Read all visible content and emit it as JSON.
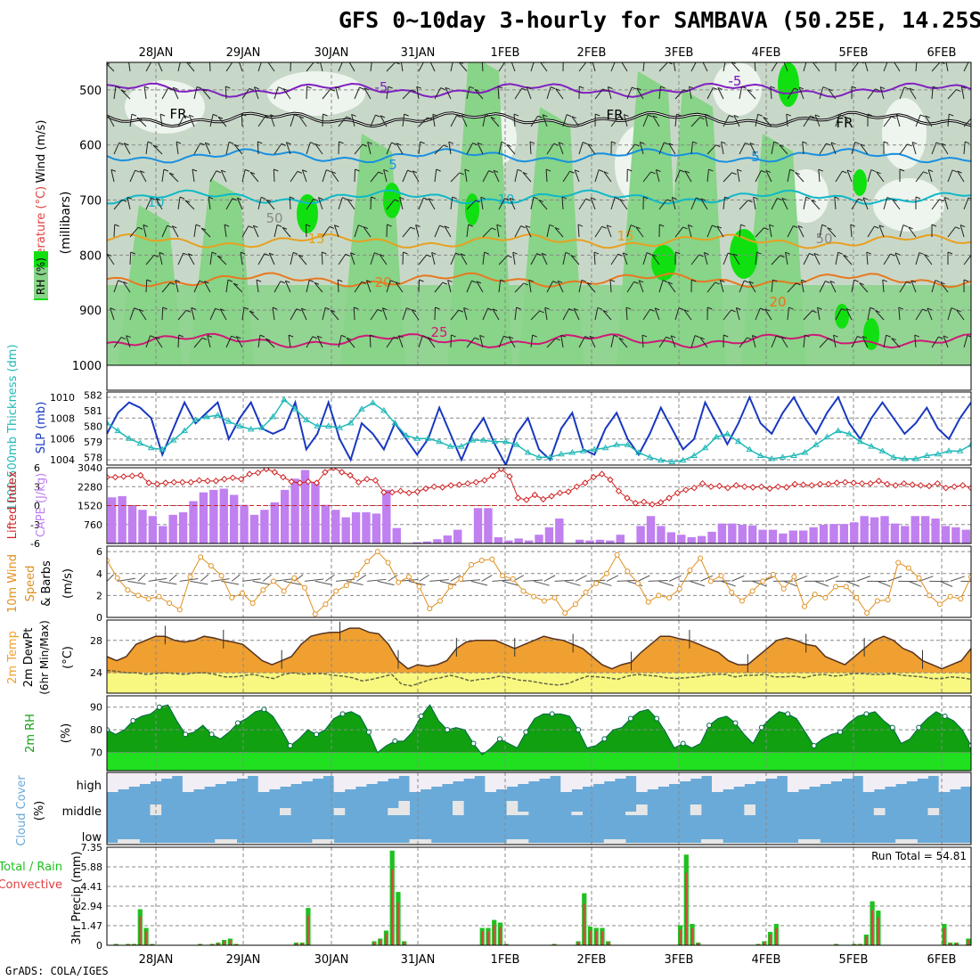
{
  "title": "GFS 0~10day 3-hourly for SAMBAVA (50.25E, 14.25S)",
  "credit": "GrADS: COLA/IGES",
  "date_labels": [
    "28JAN",
    "29JAN",
    "30JAN",
    "31JAN",
    "1FEB",
    "2FEB",
    "3FEB",
    "4FEB",
    "5FEB",
    "6FEB"
  ],
  "colors": {
    "rh_light": "#c8d8c8",
    "rh_mid": "#88d488",
    "rh_bright": "#10e010",
    "temp_fr": "#000000",
    "temp_m5": "#8020c0",
    "temp_5": "#1890e0",
    "temp_10": "#10b8c8",
    "temp_15": "#e8a020",
    "temp_20": "#e87820",
    "temp_25": "#d01878",
    "slp": "#1838c0",
    "thick": "#20b8b8",
    "lifted": "#d02020",
    "cape": "#c080f0",
    "wind10": "#e09020",
    "temp2m": "#f0a030",
    "dew2m": "#f8f880",
    "rh2m_dark": "#10a010",
    "rh2m_light": "#20e020",
    "cloud": "#6aaad8",
    "precip_total": "#20c020",
    "precip_conv": "#e04040"
  },
  "chart_data": [
    {
      "type": "heatmap",
      "name": "upper-air",
      "ylabel": "(millibars)",
      "legend_rh": "RH (%)",
      "ylabel_wind": "Wind (m/s)",
      "ylabel_temp": "Temperature (°C)",
      "y_ticks": [
        500,
        600,
        700,
        800,
        900,
        1000
      ],
      "ylim": [
        1000,
        450
      ],
      "contour_labels": [
        "-5",
        "FR",
        "5",
        "10",
        "15",
        "20",
        "25",
        "50",
        "-5",
        "FR",
        "5",
        "10",
        "15",
        "20",
        "-5",
        "FR",
        "5",
        "15",
        "20",
        "50"
      ],
      "isotherm_levels_mb": {
        "-5": 500,
        "FR": 553,
        "5": 620,
        "10": 695,
        "15": 775,
        "20": 845,
        "25": 955
      }
    },
    {
      "type": "line",
      "name": "slp-thickness",
      "ylabel_left": "1000-500mb Thickness (dm)",
      "ylabel_right": "SLP (mb)",
      "left_ticks": [
        "582",
        "581",
        "580",
        "579",
        "578"
      ],
      "right_ticks": [
        "1010",
        "1008",
        "1006",
        "1004"
      ],
      "ylim_slp": [
        1003.5,
        1010.5
      ],
      "ylim_thick": [
        577.5,
        582.2
      ],
      "slp": [
        1006.5,
        1008.5,
        1009.5,
        1009,
        1008,
        1004.5,
        1007,
        1009.5,
        1007.5,
        1008.5,
        1009.5,
        1006,
        1008,
        1009.5,
        1007,
        1006.5,
        1007,
        1009.5,
        1005,
        1006.5,
        1009.5,
        1006,
        1004,
        1007.5,
        1006.5,
        1005,
        1007.5,
        1006,
        1004.5,
        1006,
        1009,
        1006.5,
        1004,
        1006.5,
        1008,
        1005.5,
        1003.5,
        1006.5,
        1008,
        1005,
        1004,
        1007,
        1008.5,
        1005,
        1004.5,
        1007,
        1008.5,
        1006,
        1004.5,
        1006.5,
        1009,
        1007,
        1005,
        1006,
        1009.5,
        1007.5,
        1005.5,
        1007.5,
        1010,
        1007.5,
        1006.5,
        1008.5,
        1010,
        1008,
        1006.5,
        1008.5,
        1010,
        1007.5,
        1006,
        1008,
        1009.5,
        1008,
        1006.5,
        1007.5,
        1009,
        1007,
        1006,
        1008,
        1009.5
      ],
      "thickness": [
        580.2,
        579.7,
        579.2,
        578.9,
        578.6,
        578.5,
        579.1,
        579.7,
        580.4,
        580.6,
        580.7,
        580.3,
        580.0,
        579.8,
        579.9,
        580.6,
        581.7,
        581.1,
        580.4,
        580.0,
        580.0,
        579.9,
        580.2,
        581.1,
        581.5,
        581.0,
        580.2,
        579.4,
        579.2,
        579.2,
        579.0,
        578.7,
        578.7,
        579.1,
        579.1,
        579.0,
        579.0,
        578.8,
        578.3,
        578.0,
        578.0,
        578.2,
        578.3,
        578.4,
        578.5,
        578.6,
        578.8,
        578.8,
        578.3,
        578.0,
        577.8,
        577.7,
        577.8,
        578.1,
        578.6,
        579.3,
        579.5,
        579.0,
        578.5,
        578.1,
        577.9,
        578.0,
        578.1,
        578.3,
        578.8,
        579.3,
        579.7,
        579.5,
        579.0,
        578.7,
        578.4,
        578.0,
        577.9,
        577.9,
        578.1,
        578.2,
        578.4,
        578.4,
        578.8
      ]
    },
    {
      "type": "bar",
      "name": "lifted-index-cape",
      "ylabel_left": "Lifted Index",
      "ylabel_right": "CAPE (J/kg)",
      "left_ticks": [
        "-6",
        "-3",
        "0",
        "3",
        "6"
      ],
      "right_ticks": [
        "3040",
        "2280",
        "1520",
        "760"
      ],
      "ylim_cape": [
        0,
        3040
      ],
      "cape": [
        1850,
        1900,
        1500,
        1350,
        1100,
        700,
        1150,
        1250,
        1700,
        2050,
        2150,
        2200,
        1950,
        1550,
        1150,
        1350,
        1650,
        2150,
        2600,
        2950,
        2450,
        1550,
        1350,
        1050,
        1250,
        1250,
        1200,
        2150,
        620,
        0,
        50,
        80,
        170,
        320,
        550,
        0,
        1420,
        1420,
        250,
        120,
        200,
        120,
        350,
        650,
        1000,
        0,
        150,
        120,
        150,
        120,
        350,
        0,
        700,
        1100,
        700,
        450,
        350,
        250,
        300,
        470,
        800,
        800,
        750,
        720,
        550,
        550,
        400,
        520,
        520,
        650,
        750,
        780,
        780,
        850,
        1100,
        1050,
        1100,
        800,
        700,
        1100,
        1100,
        1000,
        700,
        650,
        550
      ],
      "lifted_index": [
        -4.5,
        -4.5,
        -4.6,
        -4.7,
        -4.8,
        -3.6,
        -3.4,
        -3.6,
        -3.7,
        -3.7,
        -3.7,
        -4.0,
        -3.9,
        -3.9,
        -4.2,
        -4.4,
        -4.2,
        -5.0,
        -5.2,
        -5.8,
        -5.3,
        -4.5,
        -3.8,
        -3.6,
        -3.8,
        -3.6,
        -5.3,
        -6.0,
        -5.3,
        -4.8,
        -3.7,
        -4.2,
        -4.0,
        -2.1,
        -2.1,
        -2.3,
        -2.0,
        -2.2,
        -2.7,
        -3.0,
        -2.9,
        -3.2,
        -3.3,
        -3.5,
        -3.7,
        -4.0,
        -4.7,
        -5.8,
        -4.6,
        -1.2,
        -0.9,
        -1.7,
        -1.0,
        -1.5,
        -2.0,
        -2.2,
        -3.0,
        -3.6,
        -4.5,
        -5.0,
        -4.1,
        -2.3,
        -1.2,
        -0.4,
        -0.6,
        -0.2,
        -0.5,
        -1.2,
        -2.0,
        -2.5,
        -2.8,
        -3.5,
        -3.0,
        -3.1,
        -2.8,
        -3.2,
        -3.0,
        -2.9,
        -3.0,
        -2.7,
        -3.0,
        -2.9,
        -3.4,
        -3.3,
        -3.2,
        -3.4,
        -3.4,
        -3.6,
        -3.7,
        -3.6,
        -3.5,
        -3.5,
        -3.9,
        -3.4,
        -3.2,
        -3.5,
        -3.3,
        -3.2,
        -3.1,
        -3.5,
        -2.8,
        -3.0,
        -3.2,
        -2.8
      ]
    },
    {
      "type": "line",
      "name": "wind-10m",
      "ylabel": "10m Wind Speed & Barbs (m/s)",
      "y_ticks": [
        "6",
        "4",
        "2",
        "0"
      ],
      "ylim": [
        0,
        6.5
      ],
      "speed": [
        5.2,
        3.6,
        2.5,
        2.0,
        1.7,
        1.9,
        1.3,
        0.7,
        3.7,
        5.5,
        4.7,
        3.8,
        1.8,
        2.2,
        1.3,
        2.5,
        3.3,
        2.4,
        3.6,
        2.7,
        0.3,
        1.2,
        2.4,
        2.9,
        3.9,
        5.1,
        6.0,
        5.0,
        3.2,
        3.7,
        2.8,
        0.8,
        1.5,
        2.8,
        3.5,
        4.8,
        5.2,
        5.3,
        3.8,
        3.5,
        2.4,
        1.9,
        1.5,
        1.8,
        0.4,
        1.2,
        2.3,
        3.1,
        4.0,
        5.7,
        4.2,
        3.1,
        1.4,
        2.0,
        1.8,
        2.6,
        4.3,
        5.4,
        3.3,
        3.8,
        2.3,
        1.5,
        2.4,
        3.3,
        3.9,
        2.6,
        3.7,
        1.0,
        2.1,
        1.8,
        2.8,
        2.8,
        1.8,
        0.4,
        1.5,
        1.6,
        5.0,
        4.5,
        3.6,
        2.0,
        1.2,
        1.9,
        1.7,
        3.7
      ]
    },
    {
      "type": "area",
      "name": "temp-2m",
      "ylabel": "2m Temp 2m DewPt (6hr Min/Max) (°C)",
      "y_ticks": [
        "28",
        "24"
      ],
      "ylim": [
        21.5,
        30.5
      ],
      "temp": [
        26.0,
        25.5,
        26.0,
        27.5,
        28.0,
        28.5,
        28.5,
        28.0,
        27.8,
        28.0,
        28.5,
        28.3,
        28.0,
        27.8,
        27.5,
        26.5,
        25.5,
        25.0,
        25.5,
        26.0,
        27.5,
        28.5,
        28.8,
        29.0,
        29.0,
        29.5,
        29.5,
        29.0,
        28.8,
        27.5,
        25.5,
        24.5,
        25.0,
        24.8,
        25.0,
        25.5,
        27.0,
        27.8,
        28.0,
        28.0,
        28.0,
        27.5,
        27.0,
        27.5,
        28.0,
        28.5,
        28.2,
        28.0,
        27.5,
        27.0,
        26.0,
        25.0,
        24.5,
        25.0,
        25.3,
        26.5,
        27.5,
        28.5,
        28.5,
        28.2,
        28.0,
        27.5,
        27.0,
        26.5,
        25.5,
        25.0,
        25.0,
        26.0,
        27.0,
        28.0,
        28.3,
        28.0,
        27.5,
        27.3,
        26.0,
        25.5,
        25.0,
        26.0,
        27.0,
        28.0,
        28.5,
        28.0,
        27.0,
        26.5,
        25.5,
        25.0,
        24.5,
        25.0,
        25.5,
        27.0
      ],
      "dew": [
        24.3,
        24.2,
        24.0,
        24.0,
        23.8,
        23.9,
        24.0,
        23.9,
        23.8,
        24.0,
        24.0,
        23.8,
        23.5,
        23.5,
        23.7,
        23.8,
        23.5,
        23.3,
        23.8,
        24.0,
        23.8,
        23.9,
        23.9,
        23.7,
        23.6,
        23.4,
        23.0,
        23.2,
        23.5,
        23.8,
        22.6,
        22.4,
        22.8,
        23.2,
        23.4,
        23.7,
        23.4,
        23.0,
        23.2,
        23.3,
        23.6,
        23.4,
        23.1,
        23.0,
        22.8,
        22.6,
        22.5,
        22.7,
        23.2,
        23.6,
        23.5,
        23.4,
        23.2,
        23.6,
        23.8,
        23.7,
        23.6,
        23.4,
        23.3,
        23.4,
        23.5,
        23.7,
        23.8,
        23.8,
        23.5,
        23.7,
        23.7,
        23.8,
        23.5,
        23.5,
        23.6,
        23.4,
        23.7,
        23.8,
        23.6,
        23.7,
        23.9,
        23.9,
        23.8,
        23.8,
        23.9,
        23.7,
        23.6,
        23.5,
        23.3,
        23.3,
        23.5,
        23.4,
        23.2
      ]
    },
    {
      "type": "area",
      "name": "rh-2m",
      "ylabel": "2m RH (%)",
      "y_ticks": [
        "90",
        "80",
        "70"
      ],
      "ylim": [
        62,
        95
      ],
      "rh": [
        80,
        78,
        80,
        84,
        86,
        87,
        90,
        91,
        84,
        78,
        79,
        82,
        78,
        76,
        79,
        83,
        85,
        88,
        89,
        86,
        80,
        73,
        76,
        80,
        78,
        80,
        85,
        87,
        88,
        86,
        79,
        70,
        73,
        75,
        75,
        79,
        86,
        91,
        84,
        80,
        81,
        80,
        74,
        69,
        72,
        76,
        74,
        72,
        79,
        85,
        87,
        87,
        87,
        86,
        80,
        72,
        73,
        76,
        80,
        81,
        85,
        88,
        89,
        85,
        79,
        72,
        74,
        72,
        74,
        82,
        85,
        86,
        83,
        78,
        74,
        81,
        85,
        88,
        87,
        85,
        79,
        73,
        76,
        78,
        79,
        83,
        86,
        87,
        88,
        84,
        81,
        74,
        76,
        81,
        85,
        88,
        86,
        84,
        80,
        73
      ]
    },
    {
      "type": "area",
      "name": "cloud-cover",
      "ylabel": "Cloud Cover (%)",
      "category_labels": [
        "high",
        "middle",
        "low"
      ]
    },
    {
      "type": "bar",
      "name": "precip-3hr",
      "ylabel": "3hr Precip (mm)",
      "legend": [
        "Total / Rain",
        "Convective"
      ],
      "y_ticks": [
        "7.35",
        "5.88",
        "4.41",
        "2.94",
        "1.47",
        "0"
      ],
      "ylim": [
        0,
        7.35
      ],
      "run_total_label": "Run Total = 54.81",
      "total": [
        0,
        0.1,
        0,
        0.1,
        0.1,
        2.7,
        1.3,
        0.1,
        0,
        0,
        0,
        0,
        0,
        0,
        0,
        0.1,
        0,
        0.1,
        0.2,
        0.4,
        0.5,
        0.1,
        0,
        0,
        0,
        0,
        0,
        0,
        0,
        0,
        0,
        0.2,
        0.2,
        2.8,
        0,
        0,
        0,
        0,
        0,
        0,
        0,
        0,
        0,
        0,
        0.3,
        0.5,
        1.1,
        7.1,
        4.0,
        0.3,
        0,
        0,
        0,
        0,
        0,
        0,
        0,
        0,
        0,
        0,
        0,
        0,
        1.3,
        1.3,
        1.9,
        1.7,
        0.1,
        0,
        0,
        0,
        0,
        0,
        0,
        0,
        0.1,
        0,
        0,
        0,
        0.3,
        3.9,
        1.4,
        1.3,
        1.3,
        0.3,
        0,
        0,
        0,
        0,
        0,
        0,
        0,
        0,
        0,
        0,
        0,
        1.5,
        6.8,
        1.6,
        0.2,
        0,
        0,
        0,
        0,
        0,
        0,
        0,
        0,
        0,
        0.1,
        0.3,
        1.0,
        1.6,
        0,
        0,
        0,
        0,
        0,
        0,
        0,
        0,
        0,
        0.1,
        0,
        0,
        0.1,
        0.1,
        0.8,
        3.3,
        2.6,
        0,
        0,
        0,
        0,
        0,
        0,
        0,
        0,
        0,
        0,
        1.6,
        0.2,
        0.2,
        0,
        0.5
      ]
    }
  ]
}
